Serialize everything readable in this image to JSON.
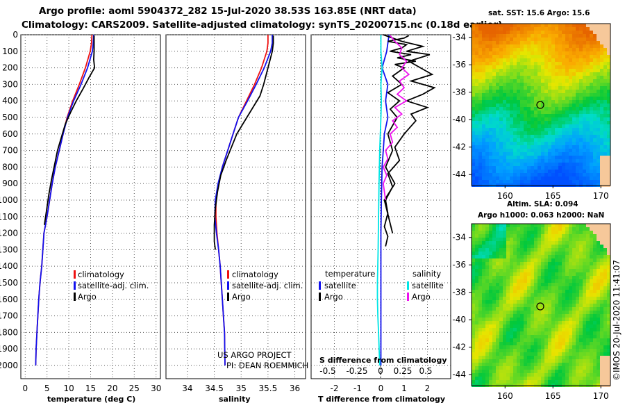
{
  "title_line1": "Argo profile: aoml 5904372_282 15-Jul-2020 38.53S 163.85E (NRT data)",
  "title_line2": "Climatology: CARS2009. Satellite-adjusted climatology: synTS_20200715.nc (0.18d earlier)",
  "credit_line1": "US ARGO PROJECT",
  "credit_line2": "PI: DEAN ROEMMICH",
  "stamp": "©IMOS 20-Jul-2020 11:41:07",
  "colors": {
    "climatology": "#ee1111",
    "satellite": "#1111ee",
    "argo": "#000000",
    "sat_salinity": "#00e5e5",
    "argo_salinity": "#ee11ee"
  },
  "chart_data": [
    {
      "type": "line",
      "id": "temperature",
      "xlabel": "temperature (deg C)",
      "xlim": [
        -1,
        31
      ],
      "ylim": [
        2080,
        0
      ],
      "xticks": [
        "0",
        "5",
        "10",
        "15",
        "20",
        "25",
        "30"
      ],
      "yticks": [
        "0",
        "100",
        "200",
        "300",
        "400",
        "500",
        "600",
        "700",
        "800",
        "900",
        "1000",
        "1100",
        "1200",
        "1300",
        "1400",
        "1500",
        "1600",
        "1700",
        "1800",
        "1900",
        "2000"
      ],
      "legend": [
        "climatology",
        "satellite-adj. clim.",
        "Argo"
      ],
      "series": [
        {
          "name": "climatology",
          "x": [
            15.3,
            15.2,
            14.9,
            13.8,
            12.4,
            10.9,
            9.6,
            8.7,
            7.8,
            6.9,
            6.2,
            5.6,
            5.0,
            4.3,
            3.8,
            3.4,
            3.1,
            2.9,
            2.7,
            2.5,
            2.4
          ],
          "y": [
            0,
            50,
            100,
            200,
            300,
            400,
            500,
            600,
            700,
            800,
            900,
            1000,
            1100,
            1200,
            1400,
            1500,
            1600,
            1700,
            1800,
            1900,
            2000
          ]
        },
        {
          "name": "satellite-adj. clim.",
          "x": [
            15.7,
            15.6,
            15.4,
            14.3,
            12.8,
            11.1,
            9.7,
            8.7,
            7.8,
            6.9,
            6.2,
            5.6,
            5.0,
            4.3,
            3.8,
            3.4,
            3.1,
            2.9,
            2.7,
            2.5,
            2.4
          ],
          "y": [
            0,
            50,
            100,
            200,
            300,
            400,
            500,
            600,
            700,
            800,
            900,
            1000,
            1100,
            1200,
            1400,
            1500,
            1600,
            1700,
            1800,
            1900,
            2000
          ]
        },
        {
          "name": "Argo",
          "x": [
            15.8,
            15.8,
            15.8,
            15.7,
            15.9,
            14.6,
            13.2,
            11.7,
            10.4,
            9.2,
            8.3,
            7.4,
            6.7,
            6.0,
            5.4,
            4.9,
            4.4
          ],
          "y": [
            5,
            50,
            100,
            150,
            200,
            260,
            330,
            400,
            470,
            540,
            620,
            700,
            790,
            880,
            970,
            1060,
            1150
          ]
        }
      ]
    },
    {
      "type": "line",
      "id": "salinity",
      "xlabel": "salinity",
      "xlim": [
        33.6,
        36.2
      ],
      "ylim": [
        2080,
        0
      ],
      "xticks": [
        "34",
        "34.5",
        "35",
        "35.5",
        "36"
      ],
      "legend": [
        "climatology",
        "satellite-adj. clim.",
        "Argo"
      ],
      "series": [
        {
          "name": "climatology",
          "x": [
            35.5,
            35.5,
            35.48,
            35.38,
            35.25,
            35.1,
            34.95,
            34.85,
            34.75,
            34.65,
            34.58,
            34.53,
            34.53,
            34.55,
            34.58,
            34.61,
            34.63,
            34.65,
            34.67,
            34.69,
            34.7
          ],
          "y": [
            0,
            50,
            100,
            200,
            300,
            400,
            500,
            600,
            700,
            800,
            900,
            1000,
            1100,
            1200,
            1300,
            1400,
            1500,
            1600,
            1700,
            1800,
            2000
          ]
        },
        {
          "name": "satellite-adj. clim.",
          "x": [
            35.58,
            35.58,
            35.55,
            35.43,
            35.28,
            35.12,
            34.95,
            34.85,
            34.75,
            34.65,
            34.57,
            34.52,
            34.51,
            34.54,
            34.58,
            34.61,
            34.63,
            34.65,
            34.67,
            34.69,
            34.7
          ],
          "y": [
            0,
            50,
            100,
            200,
            300,
            400,
            500,
            600,
            700,
            800,
            900,
            1000,
            1100,
            1200,
            1300,
            1400,
            1500,
            1600,
            1700,
            1800,
            2000
          ]
        },
        {
          "name": "Argo",
          "x": [
            35.6,
            35.6,
            35.58,
            35.5,
            35.42,
            35.35,
            35.2,
            35.05,
            34.92,
            34.82,
            34.72,
            34.62,
            34.56,
            34.52,
            34.5,
            34.5,
            34.52
          ],
          "y": [
            5,
            50,
            100,
            200,
            300,
            370,
            450,
            530,
            600,
            680,
            760,
            850,
            950,
            1050,
            1150,
            1250,
            1300
          ]
        }
      ]
    },
    {
      "type": "line",
      "id": "differences",
      "xlabel": "T difference from climatology",
      "xlabel_top": "S difference from climatology",
      "xlim": [
        -3,
        3
      ],
      "ylim": [
        2080,
        0
      ],
      "xticks": [
        "-2",
        "-1",
        "0",
        "1",
        "2"
      ],
      "xticks_top": [
        "-0.5",
        "-0.25",
        "0",
        "0.25",
        "0.5"
      ],
      "legend_left": [
        "temperature",
        "satellite",
        "Argo"
      ],
      "legend_right": [
        "salinity",
        "satellite",
        "Argo"
      ],
      "series": [
        {
          "name": "satellite",
          "x": [
            0.35,
            0.25,
            0.05,
            0.3,
            0.2,
            0.3,
            0.15,
            0.1,
            0.05,
            0.02,
            0.0,
            0.0,
            0.0
          ],
          "y": [
            0,
            100,
            200,
            300,
            400,
            500,
            600,
            700,
            800,
            1000,
            1200,
            1600,
            2000
          ]
        },
        {
          "name": "Argo",
          "x": [
            1.2,
            1.0,
            0.3,
            1.1,
            0.9,
            0.4,
            1.3,
            0.7,
            1.5,
            0.6,
            1.0,
            0.5,
            0.9,
            0.3,
            0.8,
            0.4,
            0.7,
            0.3,
            0.5,
            0.2,
            0.6,
            0.15,
            0.5
          ],
          "y": [
            5,
            20,
            40,
            60,
            80,
            100,
            120,
            140,
            160,
            180,
            200,
            250,
            300,
            350,
            400,
            450,
            500,
            600,
            700,
            800,
            900,
            1000,
            1200
          ]
        },
        {
          "name": "satellite",
          "x": [
            0.0,
            0.0,
            0.05,
            0.0,
            0.02,
            0.0,
            -0.05,
            -0.08,
            -0.1,
            -0.12,
            -0.15,
            -0.15,
            -0.13,
            -0.1,
            -0.05
          ],
          "y": [
            0,
            100,
            200,
            300,
            400,
            500,
            700,
            900,
            1100,
            1300,
            1500,
            1600,
            1700,
            1800,
            2000
          ]
        },
        {
          "name": "Argo",
          "x": [
            0.1,
            0.9,
            1.8,
            1.1,
            2.1,
            1.2,
            1.7,
            2.2,
            1.3,
            2.3,
            1.8,
            1.1,
            2.0,
            1.3,
            1.5,
            1.0,
            0.6,
            0.8,
            0.3,
            0.5,
            0.2,
            0.3,
            0.15,
            0.3,
            0.2
          ],
          "y": [
            0,
            40,
            70,
            100,
            120,
            160,
            200,
            240,
            280,
            320,
            360,
            400,
            440,
            480,
            520,
            600,
            680,
            760,
            840,
            920,
            1000,
            1080,
            1160,
            1220,
            1280
          ]
        },
        {
          "name": "Argo",
          "x": [
            0.4,
            0.6,
            0.9,
            0.8,
            1.1,
            0.9,
            1.2,
            0.8,
            1.0,
            0.7,
            1.1,
            0.6,
            0.9,
            0.5,
            0.7,
            0.4,
            0.5,
            0.2,
            0.3,
            0.1,
            0.25,
            0.1,
            0.2
          ],
          "y": [
            5,
            40,
            80,
            120,
            160,
            200,
            240,
            280,
            320,
            360,
            400,
            440,
            480,
            520,
            560,
            600,
            650,
            700,
            750,
            800,
            850,
            900,
            1000
          ]
        }
      ]
    },
    {
      "type": "heatmap",
      "id": "sst_map",
      "title": "sat. SST: 15.6 Argo: 15.6",
      "xticks": [
        "160",
        "165",
        "170"
      ],
      "yticks": [
        "-34",
        "-36",
        "-38",
        "-40",
        "-42",
        "-44"
      ],
      "xlim": [
        156.5,
        171
      ],
      "ylim": [
        -44.8,
        -33
      ]
    },
    {
      "type": "heatmap",
      "id": "sla_map",
      "title_line1": "Altim. SLA: 0.094",
      "title_line2": "Argo h1000: 0.063 h2000: NaN",
      "xticks": [
        "160",
        "165",
        "170"
      ],
      "yticks": [
        "-34",
        "-36",
        "-38",
        "-40",
        "-42",
        "-44"
      ],
      "xlim": [
        156.5,
        171
      ],
      "ylim": [
        -44.8,
        -33
      ]
    }
  ]
}
